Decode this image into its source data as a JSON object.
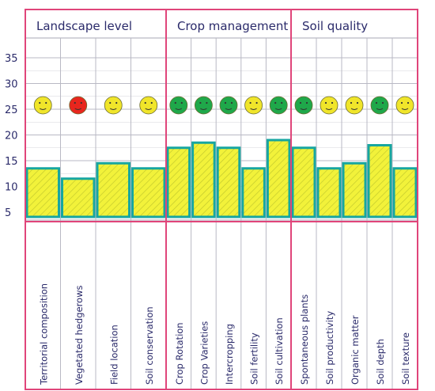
{
  "colors": {
    "frame": "#e0457a",
    "grid": "#b9b9c4",
    "bar_fill": "#f2f23a",
    "bar_stroke": "#17a6a0",
    "bar_hatch": "#b8bf2a",
    "text": "#2a2a6a",
    "face_green": "#1fa84a",
    "face_yellow": "#f0e52a",
    "face_red": "#e8261e"
  },
  "chart_data": {
    "type": "bar",
    "groups": [
      {
        "name": "Landscape level",
        "members": [
          "Territorial composition",
          "Vegetated hedgerows",
          "Field location",
          "Soil conservation"
        ]
      },
      {
        "name": "Crop management",
        "members": [
          "Crop Rotation",
          "Crop Varieties",
          "Intercropping",
          "Soil fertility",
          "Soil cultivation"
        ]
      },
      {
        "name": "Soil quality",
        "members": [
          "Spontaneous plants",
          "Soil productivity",
          "Organic matter",
          "Soil depth",
          "Soil texture"
        ]
      }
    ],
    "categories": [
      "Territorial composition",
      "Vegetated hedgerows",
      "Field location",
      "Soil conservation",
      "Crop Rotation",
      "Crop Varieties",
      "Intercropping",
      "Soil fertility",
      "Soil cultivation",
      "Spontaneous plants",
      "Soil productivity",
      "Organic matter",
      "Soil depth",
      "Soil texture"
    ],
    "values": [
      13.5,
      11.5,
      14.5,
      13.5,
      17.5,
      18.5,
      17.5,
      13.5,
      19,
      17.5,
      13.5,
      14.5,
      18,
      13.5
    ],
    "faces": [
      "yellow",
      "red",
      "yellow",
      "yellow",
      "green",
      "green",
      "green",
      "yellow",
      "green",
      "green",
      "yellow",
      "yellow",
      "green",
      "yellow"
    ],
    "y_ticks": [
      5,
      10,
      15,
      20,
      25,
      30,
      35
    ],
    "ylim": [
      5,
      35
    ],
    "grid": true
  }
}
